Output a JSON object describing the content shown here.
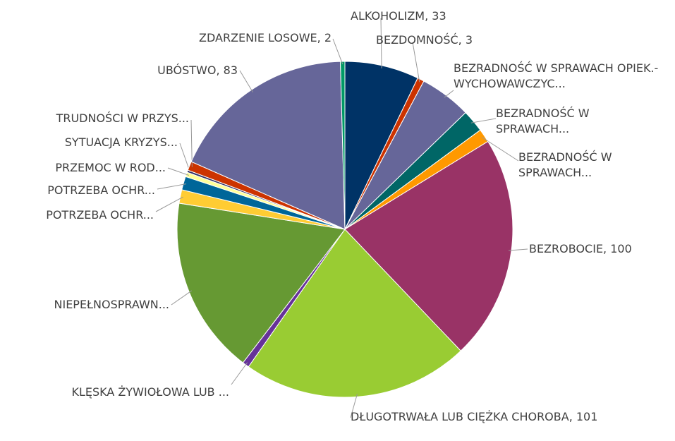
{
  "chart_data": {
    "type": "pie",
    "labels": [
      "ALKOHOLIZM, 33",
      "BEZDOMNOŚĆ, 3",
      "BEZRADNOŚĆ W SPRAWACH OPIEK.-WYCHOWAWCZYC...",
      "BEZRADNOŚĆ W SPRAWACH...",
      "BEZRADNOŚĆ W SPRAWACH...",
      "BEZROBOCIE, 100",
      "DŁUGOTRWAŁA LUB CIĘŻKA CHOROBA, 101",
      "KLĘSKA ŻYWIOŁOWA LUB ...",
      "NIEPEŁNOSPRAWN...",
      "POTRZEBA OCHR...",
      "POTRZEBA OCHR...",
      "PRZEMOC W ROD...",
      "SYTUACJA KRYZYS...",
      "TRUDNOŚCI W PRZYS...",
      "UBÓSTWO, 83",
      "ZDARZENIE LOSOWE, 2"
    ],
    "values": [
      33,
      3,
      23,
      10,
      6,
      100,
      101,
      3,
      79,
      6,
      6,
      2,
      1,
      4,
      83,
      2
    ],
    "colors": [
      "#003366",
      "#cc3300",
      "#666699",
      "#006666",
      "#ff9900",
      "#993366",
      "#99cc33",
      "#663399",
      "#669933",
      "#ffcc33",
      "#006699",
      "#ffff99",
      "#333366",
      "#cc3300",
      "#666699",
      "#009966"
    ]
  }
}
